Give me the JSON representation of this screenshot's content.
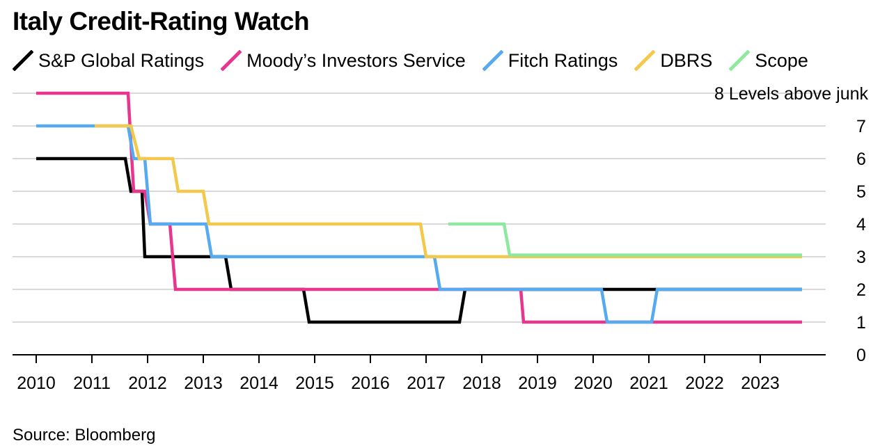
{
  "chart_data": {
    "type": "line",
    "title": "Italy Credit-Rating Watch",
    "ylabel": "Levels above junk",
    "top_tick_label": "8 Levels above junk",
    "ylim": [
      0,
      8
    ],
    "yticks": [
      "0",
      "1",
      "2",
      "3",
      "4",
      "5",
      "6",
      "7"
    ],
    "xlim": [
      2010,
      2023.75
    ],
    "xticks": [
      "2010",
      "2011",
      "2012",
      "2013",
      "2014",
      "2015",
      "2016",
      "2017",
      "2018",
      "2019",
      "2020",
      "2021",
      "2022",
      "2023"
    ],
    "source": "Source: Bloomberg",
    "series": [
      {
        "name": "S&P Global Ratings",
        "color": "#000000",
        "step_points": [
          [
            2010.0,
            6
          ],
          [
            2011.6,
            6
          ],
          [
            2011.7,
            5
          ],
          [
            2011.9,
            5
          ],
          [
            2011.95,
            3
          ],
          [
            2013.4,
            3
          ],
          [
            2013.5,
            2
          ],
          [
            2014.8,
            2
          ],
          [
            2014.9,
            1
          ],
          [
            2017.6,
            1
          ],
          [
            2017.7,
            2
          ],
          [
            2023.75,
            2
          ]
        ]
      },
      {
        "name": "Moody's Investors Service",
        "color": "#e8358e",
        "step_points": [
          [
            2010.0,
            8
          ],
          [
            2011.65,
            8
          ],
          [
            2011.75,
            5
          ],
          [
            2011.95,
            5
          ],
          [
            2012.05,
            4
          ],
          [
            2012.4,
            4
          ],
          [
            2012.5,
            2
          ],
          [
            2018.7,
            2
          ],
          [
            2018.75,
            1
          ],
          [
            2023.75,
            1
          ]
        ]
      },
      {
        "name": "Fitch Ratings",
        "color": "#55aaf0",
        "step_points": [
          [
            2010.0,
            7
          ],
          [
            2011.65,
            7
          ],
          [
            2011.75,
            6
          ],
          [
            2011.95,
            6
          ],
          [
            2012.05,
            4
          ],
          [
            2013.05,
            4
          ],
          [
            2013.15,
            3
          ],
          [
            2017.15,
            3
          ],
          [
            2017.25,
            2
          ],
          [
            2020.15,
            2
          ],
          [
            2020.25,
            1
          ],
          [
            2021.05,
            1
          ],
          [
            2021.15,
            2
          ],
          [
            2023.75,
            2
          ]
        ]
      },
      {
        "name": "DBRS",
        "color": "#f2c94c",
        "step_points": [
          [
            2011.05,
            7
          ],
          [
            2011.7,
            7
          ],
          [
            2011.85,
            6
          ],
          [
            2012.45,
            6
          ],
          [
            2012.55,
            5
          ],
          [
            2013.0,
            5
          ],
          [
            2013.1,
            4
          ],
          [
            2016.9,
            4
          ],
          [
            2017.0,
            3
          ],
          [
            2023.75,
            3
          ]
        ]
      },
      {
        "name": "Scope",
        "color": "#8ee89e",
        "step_points": [
          [
            2017.4,
            4
          ],
          [
            2018.4,
            4
          ],
          [
            2018.5,
            3.05
          ],
          [
            2023.75,
            3.05
          ]
        ]
      }
    ]
  },
  "legend": [
    {
      "label": "S&P Global Ratings",
      "color": "#000000"
    },
    {
      "label": "Moody’s Investors Service",
      "color": "#e8358e"
    },
    {
      "label": "Fitch Ratings",
      "color": "#55aaf0"
    },
    {
      "label": "DBRS",
      "color": "#f2c94c"
    },
    {
      "label": "Scope",
      "color": "#8ee89e"
    }
  ],
  "colors": {
    "grid": "#d9d9d9",
    "axis": "#000000",
    "text": "#000000"
  }
}
